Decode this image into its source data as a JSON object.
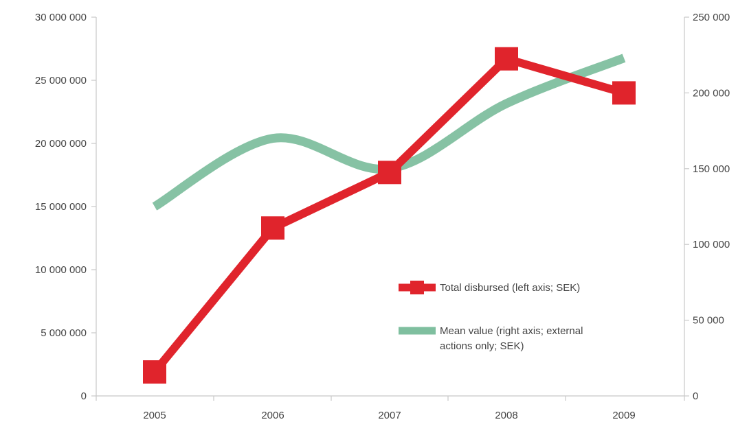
{
  "chart_data": {
    "type": "line",
    "title": "",
    "categories": [
      "2005",
      "2006",
      "2007",
      "2008",
      "2009"
    ],
    "left_axis": {
      "ylim": [
        0,
        30000000
      ],
      "ticks": [
        0,
        5000000,
        10000000,
        15000000,
        20000000,
        25000000,
        30000000
      ],
      "tick_labels": [
        "0",
        "5 000 000",
        "10 000 000",
        "15 000 000",
        "20 000 000",
        "25 000 000",
        "30 000 000"
      ]
    },
    "right_axis": {
      "ylim": [
        0,
        250000
      ],
      "ticks": [
        0,
        50000,
        100000,
        150000,
        200000,
        250000
      ],
      "tick_labels": [
        "0",
        "50 000",
        "100 000",
        "150 000",
        "200 000",
        "250 000"
      ]
    },
    "series": [
      {
        "name": "Total disbursed (left axis; SEK)",
        "axis": "left",
        "color": "#e0242c",
        "marker": "square",
        "values": [
          1900000,
          13300000,
          17700000,
          26700000,
          24000000
        ]
      },
      {
        "name": "Mean value (right axis; external actions only; SEK)",
        "name_lines": [
          "Mean value (right axis; external",
          "actions only; SEK)"
        ],
        "axis": "right",
        "color": "#7fbf9f",
        "smooth": true,
        "values": [
          125000,
          170000,
          150000,
          193000,
          223000
        ]
      }
    ],
    "legend": "center-right",
    "grid": false
  }
}
